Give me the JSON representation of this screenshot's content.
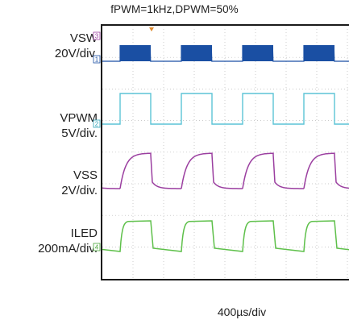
{
  "chart_data": {
    "type": "line",
    "title": "fPWM=1kHz,DPWM=50%",
    "xlabel": "400µs/div",
    "channels": [
      {
        "name": "VSW",
        "scale": "20V/div.",
        "marker": "1",
        "color": "#1a4fa3"
      },
      {
        "name": "VPWM",
        "scale": "5V/div.",
        "marker": "2",
        "color": "#5cc4d6"
      },
      {
        "name": "VSS",
        "scale": "2V/div.",
        "marker": "3",
        "color": "#9b3fa0"
      },
      {
        "name": "ILED",
        "scale": "200mA/div.",
        "marker": "4",
        "color": "#5ec04a"
      }
    ],
    "pwm_frequency_khz": 1,
    "pwm_duty_percent": 50,
    "time_per_div_us": 400,
    "grid": true
  }
}
